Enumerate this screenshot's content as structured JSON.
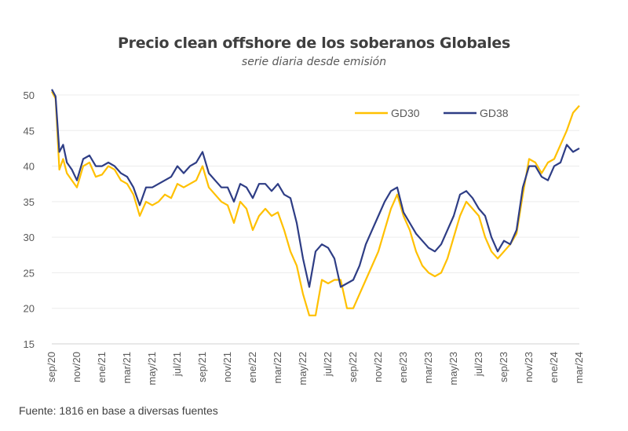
{
  "chart_data": {
    "type": "line",
    "title": "Precio clean offshore de los soberanos Globales",
    "subtitle": "serie diaria desde emisión",
    "xlabel": "",
    "ylabel": "",
    "ylim": [
      15,
      50
    ],
    "yticks": [
      15,
      20,
      25,
      30,
      35,
      40,
      45,
      50
    ],
    "xticks": [
      "sep/20",
      "nov/20",
      "ene/21",
      "mar/21",
      "may/21",
      "jul/21",
      "sep/21",
      "nov/21",
      "ene/22",
      "mar/22",
      "may/22",
      "jul/22",
      "sep/22",
      "nov/22",
      "ene/23",
      "mar/23",
      "may/23",
      "jul/23",
      "sep/23",
      "nov/23",
      "ene/24",
      "mar/24"
    ],
    "x_unit": "months since sep/20",
    "grid": true,
    "legend_position": "top-right",
    "series": [
      {
        "name": "GD30",
        "color": "#FFC000",
        "x": [
          0,
          0.3,
          0.6,
          0.9,
          1.2,
          1.6,
          2,
          2.5,
          3,
          3.5,
          4,
          4.5,
          5,
          5.5,
          6,
          6.5,
          7,
          7.5,
          8,
          8.5,
          9,
          9.5,
          10,
          10.5,
          11,
          11.5,
          12,
          12.5,
          13,
          13.5,
          14,
          14.5,
          15,
          15.5,
          16,
          16.5,
          17,
          17.5,
          18,
          18.5,
          19,
          19.5,
          20,
          20.5,
          21,
          21.5,
          22,
          22.5,
          23,
          23.5,
          24,
          24.5,
          25,
          25.5,
          26,
          26.5,
          27,
          27.5,
          28,
          28.5,
          29,
          29.5,
          30,
          30.5,
          31,
          31.5,
          32,
          32.5,
          33,
          33.5,
          34,
          34.5,
          35,
          35.5,
          36,
          36.5,
          37,
          37.5,
          38,
          38.5,
          39,
          39.5,
          40,
          40.5,
          41,
          41.5,
          42
        ],
        "values": [
          50.5,
          49.5,
          39.5,
          41,
          39,
          38,
          37,
          40,
          40.5,
          38.5,
          38.8,
          40,
          39.5,
          38,
          37.5,
          36,
          33,
          35,
          34.5,
          35,
          36,
          35.5,
          37.5,
          37,
          37.5,
          38,
          40,
          37,
          36,
          35,
          34.5,
          32,
          35,
          34,
          31,
          33,
          34,
          33,
          33.5,
          31,
          28,
          26,
          22,
          19,
          19,
          24,
          23.5,
          24,
          24,
          20,
          20,
          22,
          24,
          26,
          28,
          31,
          34,
          36,
          33,
          31,
          28,
          26,
          25,
          24.5,
          25,
          27,
          30,
          33,
          35,
          34,
          33,
          30,
          28,
          27,
          28,
          29,
          30.5,
          36,
          41,
          40.5,
          39,
          40.5,
          41,
          43,
          45,
          47.5,
          48.5
        ]
      },
      {
        "name": "GD38",
        "color": "#2E3D85",
        "x": [
          0,
          0.3,
          0.6,
          0.9,
          1.2,
          1.6,
          2,
          2.5,
          3,
          3.5,
          4,
          4.5,
          5,
          5.5,
          6,
          6.5,
          7,
          7.5,
          8,
          8.5,
          9,
          9.5,
          10,
          10.5,
          11,
          11.5,
          12,
          12.5,
          13,
          13.5,
          14,
          14.5,
          15,
          15.5,
          16,
          16.5,
          17,
          17.5,
          18,
          18.5,
          19,
          19.5,
          20,
          20.5,
          21,
          21.5,
          22,
          22.5,
          23,
          23.5,
          24,
          24.5,
          25,
          25.5,
          26,
          26.5,
          27,
          27.5,
          28,
          28.5,
          29,
          29.5,
          30,
          30.5,
          31,
          31.5,
          32,
          32.5,
          33,
          33.5,
          34,
          34.5,
          35,
          35.5,
          36,
          36.5,
          37,
          37.5,
          38,
          38.5,
          39,
          39.5,
          40,
          40.5,
          41,
          41.5,
          42
        ],
        "values": [
          50.8,
          49.8,
          42,
          43,
          40.5,
          39.5,
          38,
          41,
          41.5,
          40,
          40,
          40.5,
          40,
          39,
          38.5,
          37,
          34.5,
          37,
          37,
          37.5,
          38,
          38.5,
          40,
          39,
          40,
          40.5,
          42,
          39,
          38,
          37,
          37,
          35,
          37.5,
          37,
          35.5,
          37.5,
          37.5,
          36.5,
          37.5,
          36,
          35.5,
          32,
          27,
          23,
          28,
          29,
          28.5,
          27,
          23,
          23.5,
          24,
          26,
          29,
          31,
          33,
          35,
          36.5,
          37,
          33.5,
          32,
          30.5,
          29.5,
          28.5,
          28,
          29,
          31,
          33,
          36,
          36.5,
          35.5,
          34,
          33,
          30,
          28,
          29.5,
          29,
          31,
          37,
          40,
          40,
          38.5,
          38,
          40,
          40.5,
          43,
          42,
          42.5
        ]
      }
    ]
  },
  "source": "Fuente: 1816 en base a diversas fuentes"
}
